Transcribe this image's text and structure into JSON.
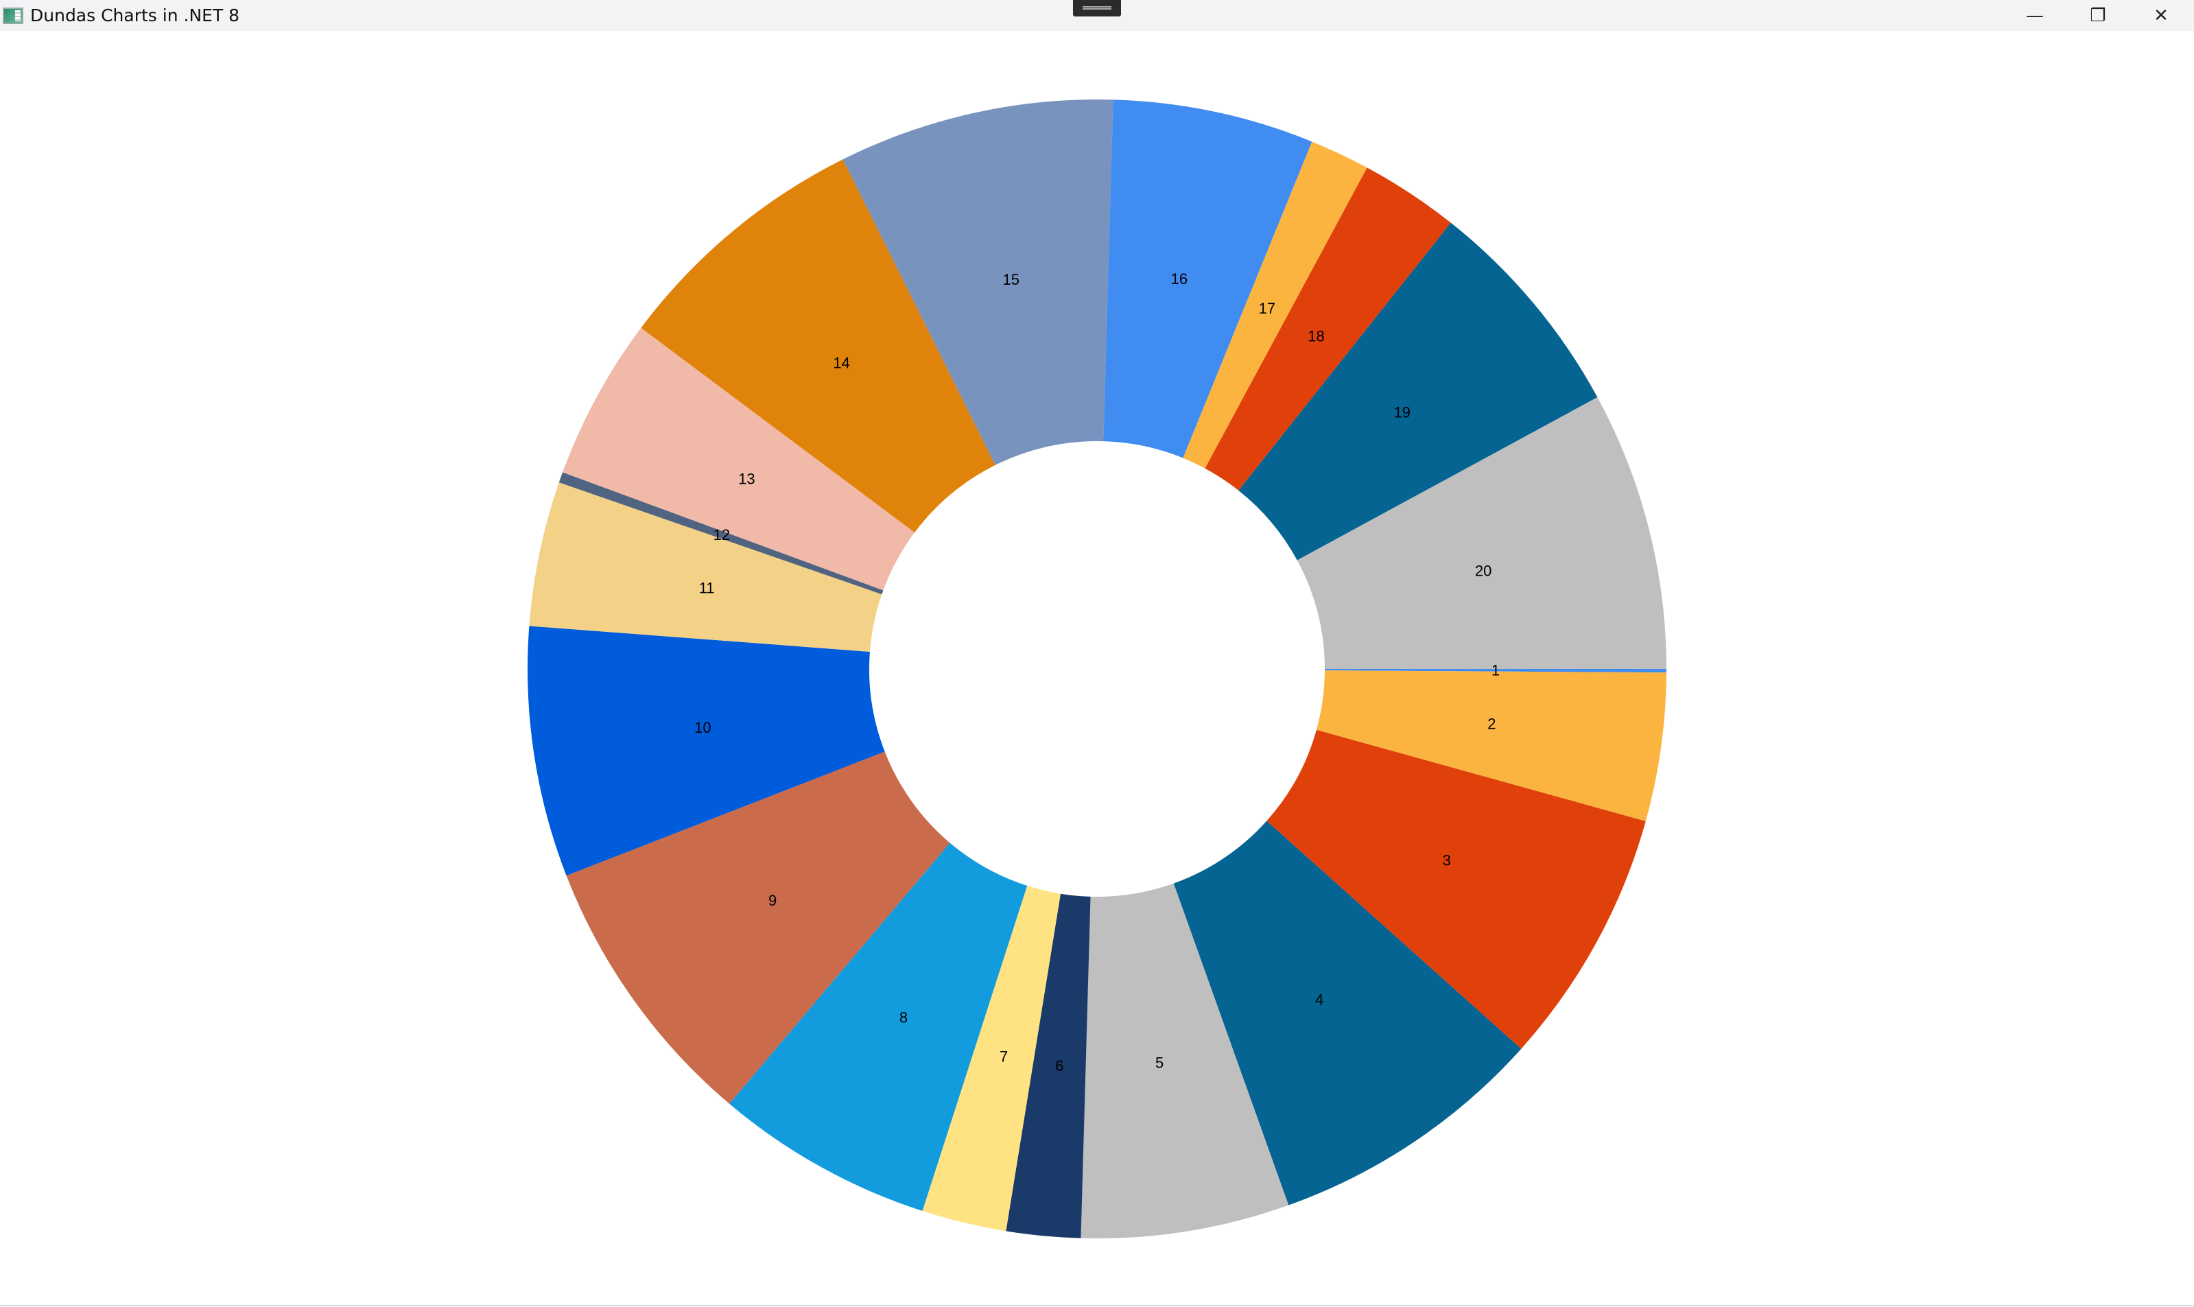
{
  "window": {
    "title": "Dundas Charts in .NET 8",
    "icons": {
      "app": "app-window-icon",
      "minimize": "minimize-icon",
      "restore": "restore-icon",
      "close": "close-icon"
    }
  },
  "chart_data": {
    "type": "pie",
    "variant": "doughnut",
    "start_angle": "3 o'clock, clockwise",
    "legend": "none",
    "categories": [
      "1",
      "2",
      "3",
      "4",
      "5",
      "6",
      "7",
      "8",
      "9",
      "10",
      "11",
      "12",
      "13",
      "14",
      "15",
      "16",
      "17",
      "18",
      "19",
      "20"
    ],
    "values": [
      0.1,
      4.2,
      7.3,
      7.9,
      5.9,
      2.1,
      2.4,
      6.2,
      7.9,
      7.1,
      4.1,
      0.3,
      4.6,
      7.4,
      7.8,
      5.7,
      1.7,
      2.8,
      6.4,
      7.9
    ],
    "colors": [
      "#418CF0",
      "#FCB441",
      "#E0400A",
      "#056492",
      "#BFBFBF",
      "#1A3B69",
      "#FFE382",
      "#129CDD",
      "#CA6B4B",
      "#005CDB",
      "#F3D288",
      "#506381",
      "#F1B9A8",
      "#E0830A",
      "#7893BE",
      "#418CF0",
      "#FCB441",
      "#E0400A",
      "#056492",
      "#BFBFBF"
    ]
  }
}
